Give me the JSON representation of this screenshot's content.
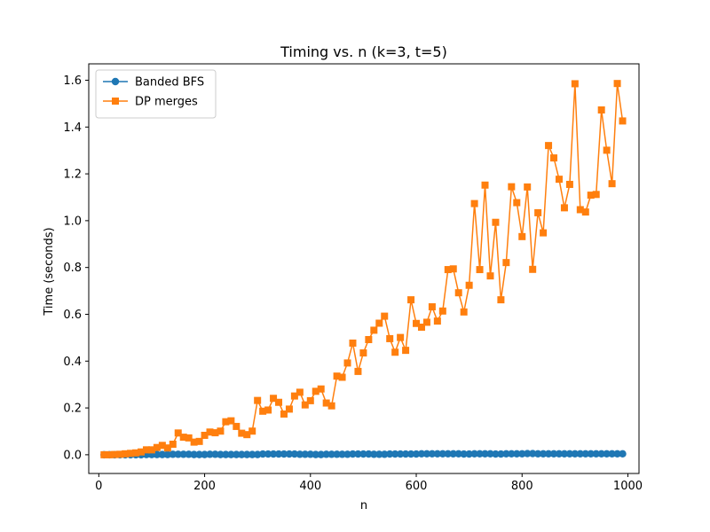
{
  "chart_data": {
    "type": "line",
    "title": "Timing vs. n (k=3, t=5)",
    "xlabel": "n",
    "ylabel": "Time (seconds)",
    "xlim": [
      -19,
      1021
    ],
    "ylim": [
      -0.08,
      1.67
    ],
    "xticks": [
      0,
      200,
      400,
      600,
      800,
      1000
    ],
    "xtick_labels": [
      "0",
      "200",
      "400",
      "600",
      "800",
      "1000"
    ],
    "yticks": [
      0.0,
      0.2,
      0.4,
      0.6,
      0.8,
      1.0,
      1.2,
      1.4,
      1.6
    ],
    "ytick_labels": [
      "0.0",
      "0.2",
      "0.4",
      "0.6",
      "0.8",
      "1.0",
      "1.2",
      "1.4",
      "1.6"
    ],
    "grid": false,
    "legend_position": "top-left",
    "x": [
      10,
      20,
      30,
      40,
      50,
      60,
      70,
      80,
      90,
      100,
      110,
      120,
      130,
      140,
      150,
      160,
      170,
      180,
      190,
      200,
      210,
      220,
      230,
      240,
      250,
      260,
      270,
      280,
      290,
      300,
      310,
      320,
      330,
      340,
      350,
      360,
      370,
      380,
      390,
      400,
      410,
      420,
      430,
      440,
      450,
      460,
      470,
      480,
      490,
      500,
      510,
      520,
      530,
      540,
      550,
      560,
      570,
      580,
      590,
      600,
      610,
      620,
      630,
      640,
      650,
      660,
      670,
      680,
      690,
      700,
      710,
      720,
      730,
      740,
      750,
      760,
      770,
      780,
      790,
      800,
      810,
      820,
      830,
      840,
      850,
      860,
      870,
      880,
      890,
      900,
      910,
      920,
      930,
      940,
      950,
      960,
      970,
      980,
      990
    ],
    "series": [
      {
        "name": "Banded BFS",
        "color": "#1f77b4",
        "marker": "circle",
        "values": [
          0.0,
          0.0,
          0.0,
          0.0,
          0.0,
          0.0,
          0.0,
          0.0,
          0.001,
          0.001,
          0.001,
          0.001,
          0.001,
          0.002,
          0.002,
          0.002,
          0.002,
          0.001,
          0.001,
          0.001,
          0.002,
          0.002,
          0.001,
          0.001,
          0.001,
          0.001,
          0.001,
          0.001,
          0.001,
          0.001,
          0.003,
          0.003,
          0.003,
          0.003,
          0.003,
          0.003,
          0.003,
          0.002,
          0.002,
          0.002,
          0.001,
          0.001,
          0.002,
          0.002,
          0.002,
          0.002,
          0.002,
          0.003,
          0.003,
          0.003,
          0.003,
          0.002,
          0.002,
          0.002,
          0.003,
          0.003,
          0.003,
          0.003,
          0.003,
          0.003,
          0.004,
          0.004,
          0.004,
          0.004,
          0.004,
          0.004,
          0.004,
          0.004,
          0.003,
          0.003,
          0.004,
          0.004,
          0.004,
          0.004,
          0.003,
          0.003,
          0.004,
          0.004,
          0.004,
          0.004,
          0.005,
          0.005,
          0.004,
          0.004,
          0.004,
          0.004,
          0.004,
          0.004,
          0.004,
          0.004,
          0.004,
          0.004,
          0.004,
          0.004,
          0.004,
          0.004,
          0.004,
          0.004,
          0.004
        ]
      },
      {
        "name": "DP merges",
        "color": "#ff7f0e",
        "marker": "square",
        "values": [
          0.0,
          0.0,
          0.001,
          0.002,
          0.004,
          0.006,
          0.008,
          0.012,
          0.021,
          0.021,
          0.031,
          0.04,
          0.029,
          0.045,
          0.093,
          0.075,
          0.072,
          0.054,
          0.057,
          0.083,
          0.097,
          0.094,
          0.101,
          0.141,
          0.145,
          0.121,
          0.092,
          0.086,
          0.101,
          0.232,
          0.186,
          0.191,
          0.241,
          0.224,
          0.174,
          0.195,
          0.251,
          0.267,
          0.213,
          0.231,
          0.271,
          0.281,
          0.221,
          0.209,
          0.336,
          0.331,
          0.392,
          0.477,
          0.356,
          0.435,
          0.492,
          0.532,
          0.562,
          0.592,
          0.496,
          0.438,
          0.501,
          0.446,
          0.662,
          0.561,
          0.545,
          0.566,
          0.632,
          0.571,
          0.614,
          0.791,
          0.794,
          0.692,
          0.61,
          0.724,
          1.073,
          0.791,
          1.152,
          0.764,
          0.993,
          0.662,
          0.821,
          1.145,
          1.077,
          0.932,
          1.144,
          0.792,
          1.034,
          0.948,
          1.321,
          1.268,
          1.177,
          1.055,
          1.155,
          1.585,
          1.047,
          1.037,
          1.109,
          1.112,
          1.473,
          1.301,
          1.158,
          1.586,
          1.426
        ]
      }
    ]
  }
}
